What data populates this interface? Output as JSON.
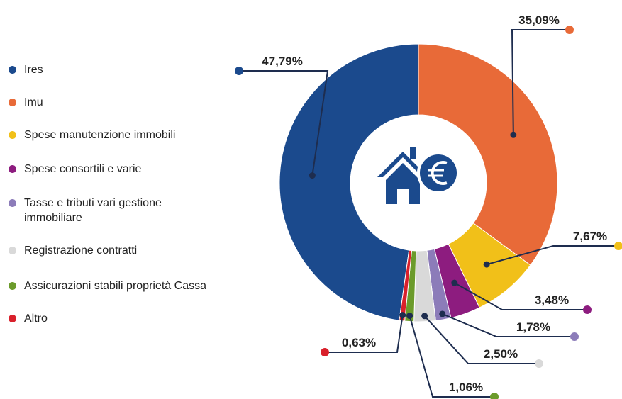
{
  "chart_data": {
    "type": "pie",
    "donut": true,
    "categories": [
      "Ires",
      "Imu",
      "Spese manutenzione immobili",
      "Spese consortili e varie",
      "Tasse e tributi vari gestione immobiliare",
      "Registrazione contratti",
      "Assicurazioni stabili proprietà Cassa",
      "Altro"
    ],
    "values": [
      47.79,
      35.09,
      7.67,
      3.48,
      1.78,
      2.5,
      1.06,
      0.63
    ],
    "value_labels": [
      "47,79%",
      "35,09%",
      "7,67%",
      "3,48%",
      "1,78%",
      "2,50%",
      "1,06%",
      "0,63%"
    ],
    "colors": [
      "#1b4a8d",
      "#e86a38",
      "#f1c019",
      "#8d1c7f",
      "#8c7cb9",
      "#d9d9d9",
      "#6b9b2b",
      "#d9202b"
    ]
  }
}
